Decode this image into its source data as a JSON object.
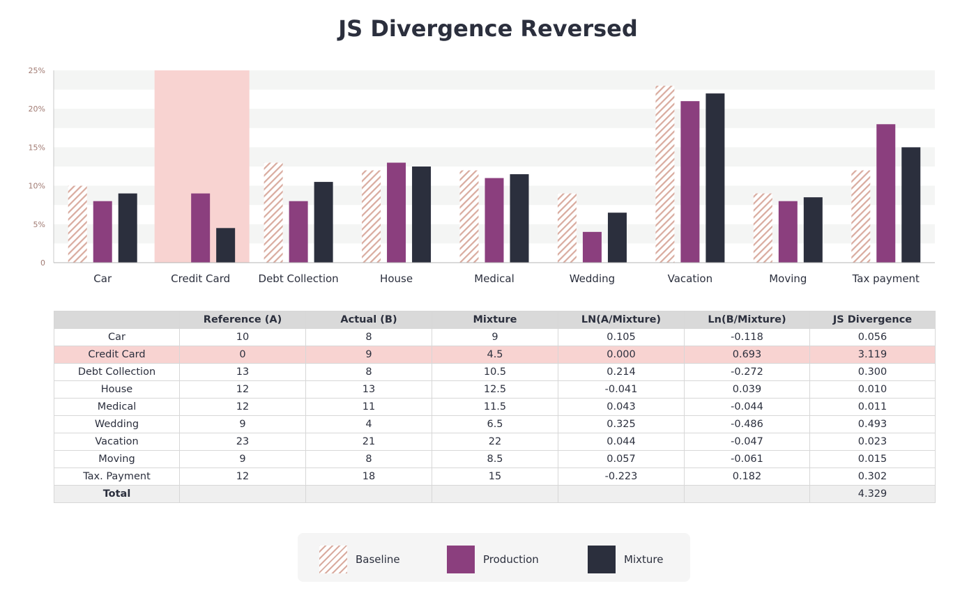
{
  "title": "JS Divergence Reversed",
  "colors": {
    "baseline": "#d9ab9f",
    "production": "#8b3f7e",
    "mixture": "#2b2f3d",
    "highlight": "#f8d3d1",
    "grid_band": "#f4f5f4"
  },
  "chart_data": {
    "type": "bar",
    "title": "JS Divergence Reversed",
    "categories": [
      "Car",
      "Credit Card",
      "Debt Collection",
      "House",
      "Medical",
      "Wedding",
      "Vacation",
      "Moving",
      "Tax payment"
    ],
    "series": [
      {
        "name": "Baseline",
        "values": [
          10,
          0,
          13,
          12,
          12,
          9,
          23,
          9,
          12
        ]
      },
      {
        "name": "Production",
        "values": [
          8,
          9,
          8,
          13,
          11,
          4,
          21,
          8,
          18
        ]
      },
      {
        "name": "Mixture",
        "values": [
          9,
          4.5,
          10.5,
          12.5,
          11.5,
          6.5,
          22,
          8.5,
          15
        ]
      }
    ],
    "yticks": [
      "0",
      "5%",
      "10%",
      "15%",
      "20%",
      "25%"
    ],
    "ylim": [
      0,
      25
    ],
    "highlight_category": "Credit Card",
    "legend": "bottom-center"
  },
  "table": {
    "headers": [
      "",
      "Reference (A)",
      "Actual (B)",
      "Mixture",
      "LN(A/Mixture)",
      "Ln(B/Mixture)",
      "JS Divergence"
    ],
    "rows": [
      [
        "Car",
        "10",
        "8",
        "9",
        "0.105",
        "-0.118",
        "0.056"
      ],
      [
        "Credit Card",
        "0",
        "9",
        "4.5",
        "0.000",
        "0.693",
        "3.119"
      ],
      [
        "Debt Collection",
        "13",
        "8",
        "10.5",
        "0.214",
        "-0.272",
        "0.300"
      ],
      [
        "House",
        "12",
        "13",
        "12.5",
        "-0.041",
        "0.039",
        "0.010"
      ],
      [
        "Medical",
        "12",
        "11",
        "11.5",
        "0.043",
        "-0.044",
        "0.011"
      ],
      [
        "Wedding",
        "9",
        "4",
        "6.5",
        "0.325",
        "-0.486",
        "0.493"
      ],
      [
        "Vacation",
        "23",
        "21",
        "22",
        "0.044",
        "-0.047",
        "0.023"
      ],
      [
        "Moving",
        "9",
        "8",
        "8.5",
        "0.057",
        "-0.061",
        "0.015"
      ],
      [
        "Tax. Payment",
        "12",
        "18",
        "15",
        "-0.223",
        "0.182",
        "0.302"
      ]
    ],
    "highlight_row": 1,
    "total": {
      "label": "Total",
      "value": "4.329"
    }
  },
  "legend": [
    {
      "label": "Baseline",
      "swatch": "baseline"
    },
    {
      "label": "Production",
      "swatch": "production"
    },
    {
      "label": "Mixture",
      "swatch": "mixture"
    }
  ]
}
